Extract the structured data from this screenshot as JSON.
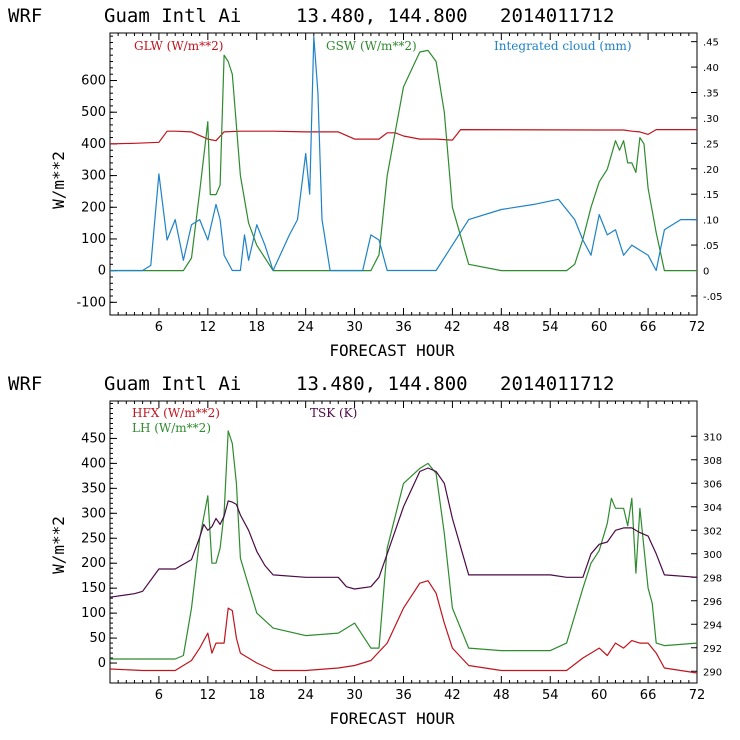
{
  "chart_data": [
    {
      "type": "line",
      "header": {
        "model": "WRF",
        "station": "Guam Intl Ai",
        "coords": "13.480, 144.800",
        "init": "2014011712"
      },
      "xlabel": "FORECAST HOUR",
      "ylabel": "W/m**2",
      "xlim": [
        0,
        72
      ],
      "xticks": [
        6,
        12,
        18,
        24,
        30,
        36,
        42,
        48,
        54,
        60,
        66,
        72
      ],
      "ylim": [
        -140,
        750
      ],
      "yticks": [
        -100,
        0,
        100,
        200,
        300,
        400,
        500,
        600
      ],
      "y2lim": [
        -0.0875,
        0.467
      ],
      "y2ticks": [
        -0.05,
        0,
        0.05,
        0.1,
        0.15,
        0.2,
        0.25,
        0.3,
        0.35,
        0.4,
        0.45
      ],
      "y2ticklabels": [
        "-.05",
        "0",
        ".05",
        ".10",
        ".15",
        ".20",
        ".25",
        ".30",
        ".35",
        ".40",
        ".45"
      ],
      "series": [
        {
          "name": "GLW (W/m**2)",
          "color": "#c0141e",
          "axis": "left",
          "x": [
            0,
            3,
            6,
            7,
            8,
            10,
            12,
            13,
            14,
            16,
            18,
            20,
            24,
            28,
            30,
            33,
            34,
            35,
            36,
            38,
            40,
            42,
            43,
            60,
            63,
            64,
            65,
            66,
            67,
            72
          ],
          "y": [
            400,
            402,
            405,
            440,
            440,
            438,
            415,
            410,
            438,
            440,
            440,
            440,
            438,
            438,
            415,
            415,
            435,
            435,
            425,
            415,
            415,
            412,
            445,
            444,
            444,
            440,
            438,
            430,
            445,
            445
          ]
        },
        {
          "name": "GSW (W/m**2)",
          "color": "#2e8b2e",
          "axis": "left",
          "x": [
            0,
            9,
            10,
            11,
            12,
            12.3,
            13,
            13.5,
            14,
            14.5,
            15,
            16,
            17,
            18,
            20,
            24,
            30,
            32,
            33,
            34,
            36,
            38,
            39,
            40,
            41,
            42,
            44,
            48,
            56,
            57,
            58,
            59,
            60,
            61,
            62,
            62.5,
            63,
            63.5,
            64,
            64.5,
            65,
            65.5,
            66,
            67,
            68,
            72
          ],
          "y": [
            0,
            0,
            40,
            250,
            470,
            240,
            240,
            270,
            680,
            660,
            620,
            300,
            150,
            80,
            0,
            0,
            0,
            0,
            50,
            300,
            580,
            690,
            695,
            660,
            500,
            200,
            20,
            0,
            0,
            20,
            100,
            200,
            280,
            320,
            410,
            380,
            410,
            340,
            340,
            310,
            420,
            400,
            260,
            120,
            0,
            0
          ]
        },
        {
          "name": "Integrated cloud (mm)",
          "color": "#1e82c8",
          "axis": "right",
          "x": [
            0,
            4,
            5,
            6,
            7,
            8,
            9,
            10,
            11,
            12,
            13,
            13.5,
            14,
            15,
            16,
            16.5,
            17,
            18,
            19,
            20,
            22,
            23,
            24,
            24.5,
            25,
            25.5,
            26,
            27,
            29,
            31,
            32,
            33,
            33.5,
            34,
            36,
            40,
            42,
            44,
            48,
            52,
            55,
            56,
            57,
            58,
            59,
            60,
            61,
            62,
            63,
            64,
            65,
            66,
            67,
            68,
            70,
            72
          ],
          "y": [
            0,
            0,
            0.01,
            0.19,
            0.06,
            0.1,
            0.02,
            0.09,
            0.1,
            0.06,
            0.13,
            0.1,
            0.03,
            0.0,
            0.0,
            0.07,
            0.02,
            0.09,
            0.05,
            0.0,
            0.07,
            0.1,
            0.23,
            0.15,
            0.46,
            0.35,
            0.1,
            0.0,
            0.0,
            0.0,
            0.07,
            0.06,
            0.03,
            0.0,
            0.0,
            0.0,
            0.05,
            0.1,
            0.12,
            0.13,
            0.14,
            0.12,
            0.1,
            0.06,
            0.03,
            0.11,
            0.07,
            0.08,
            0.03,
            0.05,
            0.04,
            0.03,
            0.0,
            0.08,
            0.1,
            0.1
          ]
        }
      ]
    },
    {
      "type": "line",
      "header": {
        "model": "WRF",
        "station": "Guam Intl Ai",
        "coords": "13.480, 144.800",
        "init": "2014011712"
      },
      "xlabel": "FORECAST HOUR",
      "ylabel": "W/m**2",
      "xlim": [
        0,
        72
      ],
      "xticks": [
        6,
        12,
        18,
        24,
        30,
        36,
        42,
        48,
        54,
        60,
        66,
        72
      ],
      "ylim": [
        -40,
        525
      ],
      "yticks": [
        0,
        50,
        100,
        150,
        200,
        250,
        300,
        350,
        400,
        450
      ],
      "y2lim": [
        289,
        313
      ],
      "y2ticks": [
        290,
        292,
        294,
        296,
        298,
        300,
        302,
        304,
        306,
        308,
        310
      ],
      "y2ticklabels": [
        "290",
        "292",
        "294",
        "296",
        "298",
        "300",
        "302",
        "304",
        "306",
        "308",
        "310"
      ],
      "series": [
        {
          "name": "HFX (W/m**2)",
          "color": "#c0141e",
          "axis": "left",
          "x": [
            0,
            4,
            8,
            10,
            11,
            12,
            12.5,
            13,
            14,
            14.5,
            15,
            15.5,
            16,
            18,
            20,
            24,
            28,
            30,
            32,
            34,
            36,
            38,
            39,
            40,
            41,
            42,
            44,
            48,
            54,
            56,
            58,
            59,
            60,
            61,
            62,
            63,
            64,
            65,
            66,
            67,
            68,
            72
          ],
          "y": [
            -12,
            -15,
            -15,
            5,
            30,
            60,
            20,
            40,
            40,
            110,
            105,
            50,
            20,
            0,
            -15,
            -15,
            -10,
            -5,
            5,
            40,
            110,
            160,
            165,
            140,
            80,
            30,
            -5,
            -15,
            -15,
            -15,
            10,
            20,
            30,
            15,
            40,
            30,
            45,
            40,
            40,
            20,
            -10,
            -20
          ]
        },
        {
          "name": "LH (W/m**2)",
          "color": "#2e8b2e",
          "axis": "left",
          "x": [
            0,
            4,
            8,
            9,
            10,
            11,
            12,
            12.5,
            13,
            13.5,
            14,
            14.5,
            15,
            15.5,
            16,
            18,
            20,
            24,
            28,
            30,
            32,
            33,
            34,
            36,
            38,
            39,
            40,
            41,
            42,
            44,
            48,
            54,
            56,
            58,
            59,
            60,
            61,
            61.5,
            62,
            63,
            63.5,
            64,
            64.5,
            65,
            66,
            66.5,
            67,
            68,
            72
          ],
          "y": [
            8,
            8,
            8,
            15,
            110,
            250,
            335,
            200,
            200,
            230,
            300,
            465,
            440,
            360,
            210,
            100,
            70,
            55,
            60,
            80,
            30,
            30,
            230,
            360,
            390,
            400,
            380,
            260,
            110,
            30,
            25,
            25,
            40,
            150,
            200,
            225,
            280,
            330,
            310,
            310,
            275,
            330,
            180,
            310,
            150,
            120,
            40,
            35,
            40
          ]
        },
        {
          "name": "TSK (K)",
          "color": "#4b0a46",
          "axis": "right",
          "x": [
            0,
            3,
            4,
            6,
            7,
            8,
            10,
            11,
            11.5,
            12,
            12.5,
            13,
            13.5,
            14,
            14.5,
            15,
            15.5,
            16,
            17,
            18,
            19,
            20,
            24,
            28,
            29,
            30,
            32,
            33,
            34,
            36,
            38,
            39,
            40,
            41,
            42,
            44,
            48,
            54,
            56,
            58,
            59,
            60,
            61,
            62,
            63,
            64,
            65,
            66,
            67,
            68,
            72
          ],
          "y": [
            296.3,
            296.6,
            296.8,
            298.7,
            298.7,
            298.7,
            299.5,
            301.4,
            302.5,
            302.0,
            302.3,
            303.0,
            302.5,
            303.2,
            304.5,
            304.4,
            304.2,
            303.3,
            302.0,
            300.2,
            299.0,
            298.2,
            298.0,
            298.0,
            297.2,
            297.0,
            297.2,
            298.0,
            300.0,
            304.0,
            307.0,
            307.3,
            307.0,
            306.0,
            303.0,
            298.2,
            298.2,
            298.2,
            298.0,
            298.0,
            300.0,
            300.8,
            301.0,
            302.0,
            302.2,
            302.2,
            301.8,
            301.5,
            300.0,
            298.2,
            298.0
          ]
        }
      ]
    }
  ]
}
